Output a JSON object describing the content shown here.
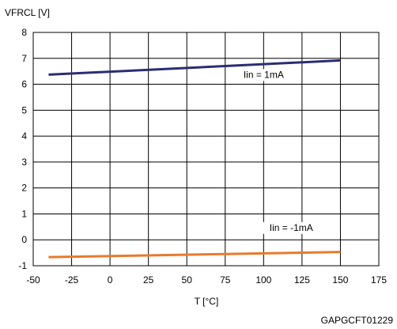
{
  "chart_data": {
    "type": "line",
    "ylabel": "VFRCL [V]",
    "xlabel": "T [°C]",
    "xlim": [
      -50,
      175
    ],
    "ylim": [
      -1,
      8
    ],
    "x_ticks": [
      -50,
      -25,
      0,
      25,
      50,
      75,
      100,
      125,
      150,
      175
    ],
    "y_ticks": [
      -1,
      0,
      1,
      2,
      3,
      4,
      5,
      6,
      7,
      8
    ],
    "grid": true,
    "series": [
      {
        "name": "Iin = 1mA",
        "color": "#2b2d73",
        "x": [
          -40,
          150
        ],
        "y": [
          6.37,
          6.92
        ],
        "label_at": [
          100,
          6.25
        ]
      },
      {
        "name": "Iin = -1mA",
        "color": "#e87a2c",
        "x": [
          -40,
          150
        ],
        "y": [
          -0.67,
          -0.47
        ],
        "label_at": [
          118,
          0.35
        ]
      }
    ],
    "footer": "GAPGCFT01229"
  }
}
